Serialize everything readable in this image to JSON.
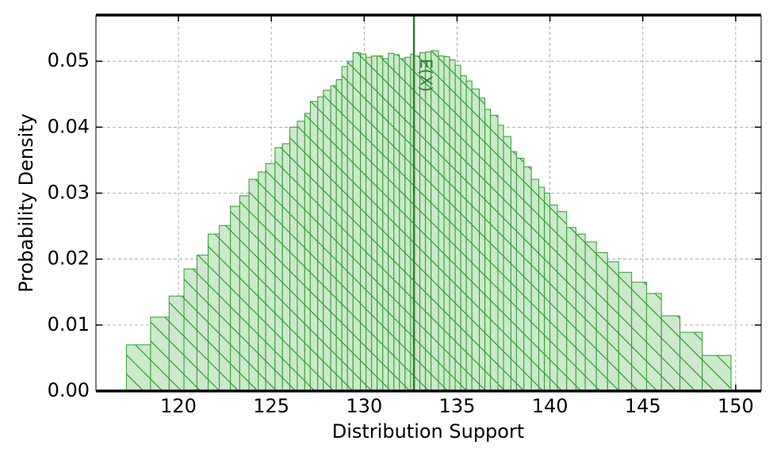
{
  "chart_data": {
    "type": "histogram",
    "xlabel": "Distribution Support",
    "ylabel": "Probability Density",
    "bins": [
      117.2,
      118.5,
      119.5,
      120.3,
      121.0,
      121.6,
      122.2,
      122.8,
      123.3,
      123.8,
      124.3,
      124.7,
      125.2,
      125.6,
      126.0,
      126.4,
      126.8,
      127.1,
      127.5,
      127.8,
      128.2,
      128.5,
      128.8,
      129.1,
      129.4,
      129.8,
      130.1,
      130.4,
      130.7,
      131.0,
      131.3,
      131.6,
      131.9,
      132.2,
      132.5,
      132.7,
      133.0,
      133.3,
      133.6,
      134.0,
      134.3,
      134.6,
      134.9,
      135.2,
      135.5,
      135.8,
      136.2,
      136.5,
      136.8,
      137.2,
      137.5,
      137.9,
      138.2,
      138.6,
      139.0,
      139.4,
      139.7,
      140.0,
      140.4,
      140.9,
      141.4,
      141.9,
      142.5,
      143.1,
      143.7,
      144.4,
      145.2,
      146.0,
      147.0,
      148.2,
      149.75
    ],
    "values": [
      0.007,
      0.0112,
      0.0144,
      0.0185,
      0.0206,
      0.0238,
      0.0251,
      0.028,
      0.0296,
      0.0321,
      0.0332,
      0.0345,
      0.0369,
      0.0375,
      0.04,
      0.0409,
      0.0421,
      0.0439,
      0.0446,
      0.0456,
      0.0463,
      0.0472,
      0.0492,
      0.05,
      0.0513,
      0.0511,
      0.0506,
      0.0508,
      0.0508,
      0.0504,
      0.0512,
      0.051,
      0.0504,
      0.0506,
      0.0511,
      0.0508,
      0.0513,
      0.0514,
      0.0516,
      0.0508,
      0.0507,
      0.0502,
      0.0494,
      0.0478,
      0.047,
      0.0458,
      0.0444,
      0.0427,
      0.0418,
      0.0403,
      0.0386,
      0.0363,
      0.0353,
      0.034,
      0.0321,
      0.0309,
      0.03,
      0.0282,
      0.0272,
      0.0248,
      0.0238,
      0.0226,
      0.021,
      0.0196,
      0.018,
      0.0165,
      0.0148,
      0.0114,
      0.0089,
      0.0054
    ],
    "color": "#2ca02c",
    "fill": "#cde8cc",
    "hatch": true,
    "mean_line": {
      "x": 132.68,
      "label": "E(X)",
      "color": "#2e7d32"
    },
    "xlim": [
      115.56,
      151.37
    ],
    "xticks": [
      120,
      125,
      130,
      135,
      140,
      145,
      150
    ],
    "ylim": [
      0,
      0.057
    ],
    "yticks": [
      {
        "value": 0,
        "label": "0.00"
      },
      0.01,
      0.02,
      0.03,
      0.04,
      0.05
    ],
    "grid": true
  }
}
